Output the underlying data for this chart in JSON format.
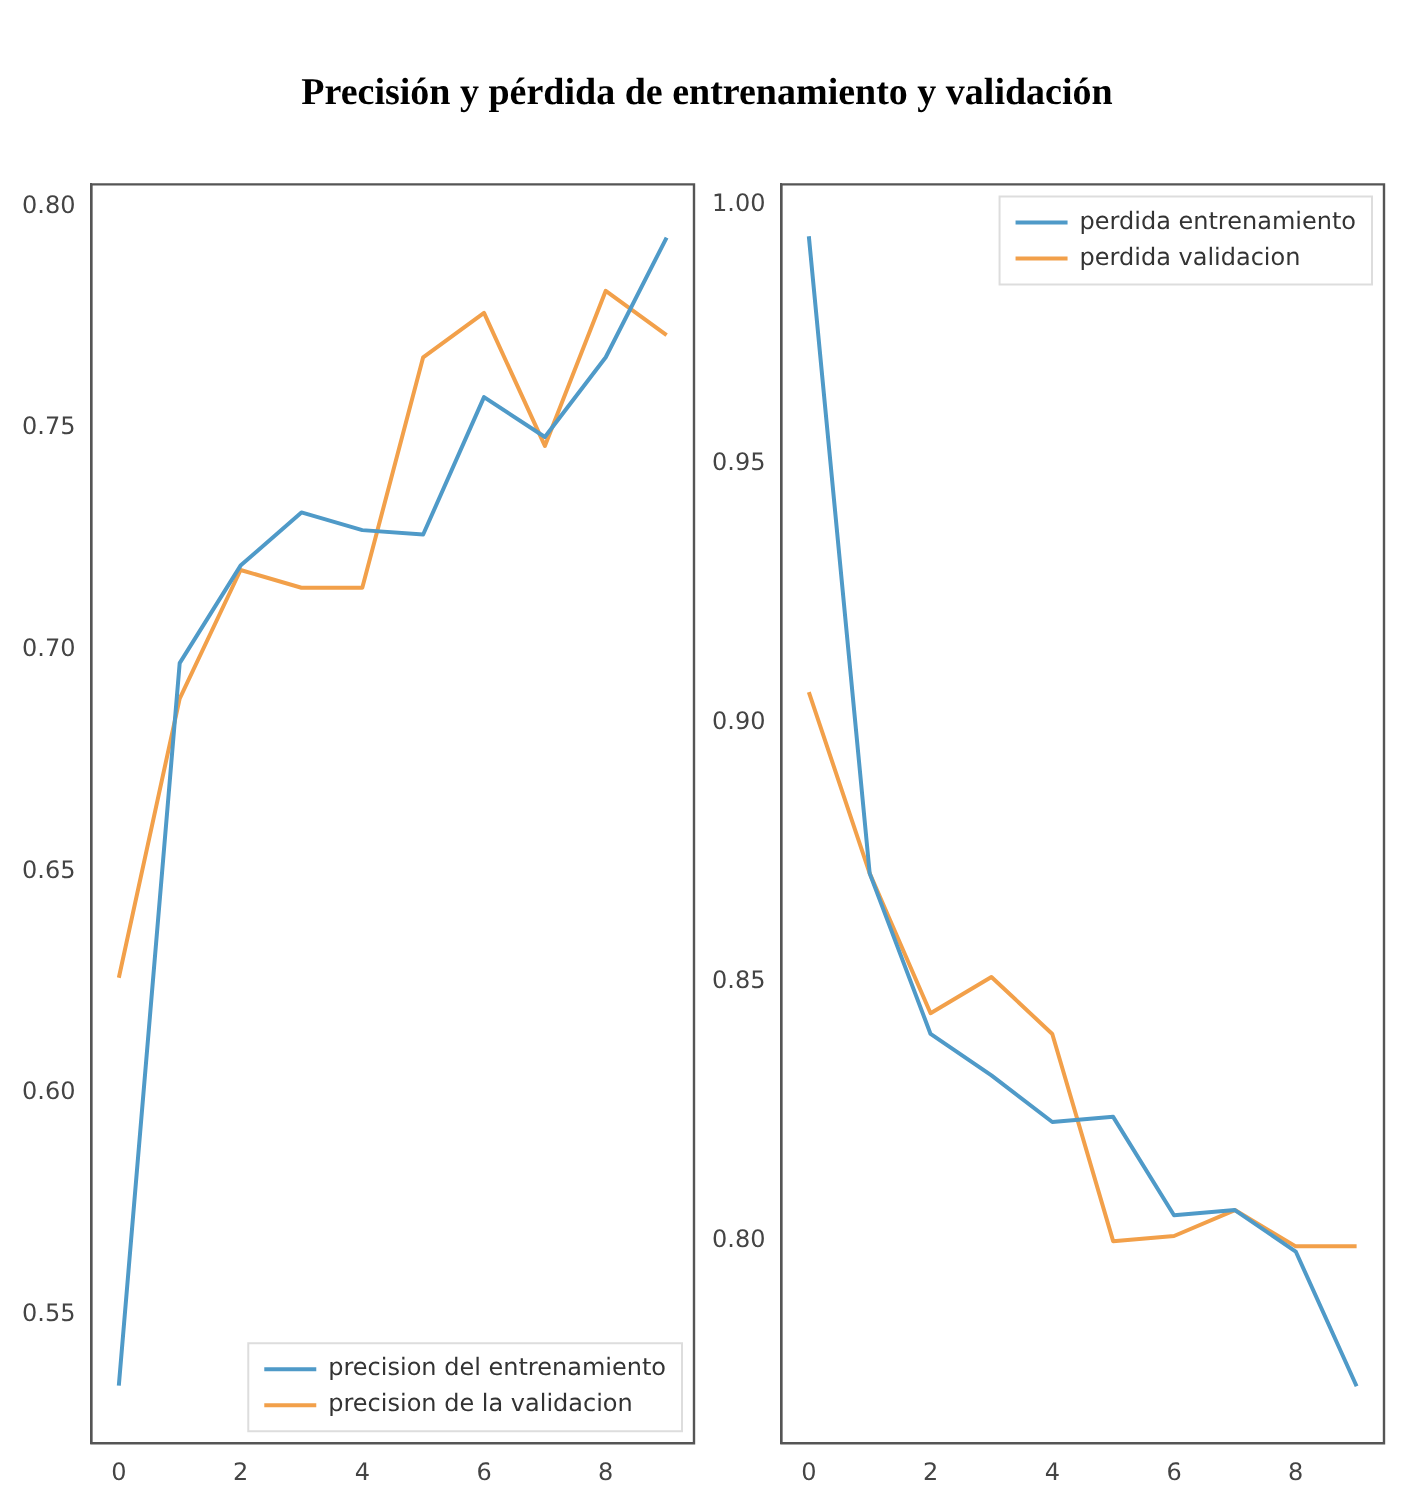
{
  "chart_data": [
    {
      "type": "line",
      "title": "Precisión y pérdida de entrenamiento y validación",
      "x": [
        0,
        1,
        2,
        3,
        4,
        5,
        6,
        7,
        8,
        9
      ],
      "series": [
        {
          "name": "precision del entrenamiento",
          "color": "#4f9ac8",
          "values": [
            0.534,
            0.697,
            0.719,
            0.731,
            0.727,
            0.726,
            0.757,
            0.748,
            0.766,
            0.793
          ]
        },
        {
          "name": "precision de la validacion",
          "color": "#f2a04a",
          "values": [
            0.626,
            0.689,
            0.718,
            0.714,
            0.714,
            0.766,
            0.776,
            0.746,
            0.781,
            0.771
          ]
        }
      ],
      "xlim": [
        -0.45,
        9.45
      ],
      "xticks": [
        0,
        2,
        4,
        6,
        8
      ],
      "ylim": [
        0.521,
        0.805
      ],
      "yticks": [
        0.55,
        {
          "value": 0.6,
          "label": "0.60"
        },
        0.65,
        {
          "value": 0.7,
          "label": "0.70"
        },
        0.75,
        {
          "value": 0.8,
          "label": "0.80"
        }
      ],
      "grid": false,
      "legend": "bottom right"
    },
    {
      "type": "line",
      "x": [
        0,
        1,
        2,
        3,
        4,
        5,
        6,
        7,
        8,
        9
      ],
      "series": [
        {
          "name": "perdida entrenamiento",
          "color": "#4f9ac8",
          "values": [
            0.994,
            0.871,
            0.84,
            0.832,
            0.823,
            0.824,
            0.805,
            0.806,
            0.798,
            0.772
          ]
        },
        {
          "name": "perdida validacion",
          "color": "#f2a04a",
          "values": [
            0.906,
            0.871,
            0.844,
            0.851,
            0.84,
            0.8,
            0.801,
            0.806,
            0.799,
            0.799
          ]
        }
      ],
      "xlim": [
        -0.45,
        9.45
      ],
      "xticks": [
        0,
        2,
        4,
        6,
        8
      ],
      "ylim": [
        0.761,
        1.004
      ],
      "yticks": [
        {
          "value": 0.8,
          "label": "0.80"
        },
        0.85,
        {
          "value": 0.9,
          "label": "0.90"
        },
        0.95,
        {
          "value": 1,
          "label": "1.00"
        }
      ],
      "grid": false,
      "legend": "top right"
    }
  ]
}
